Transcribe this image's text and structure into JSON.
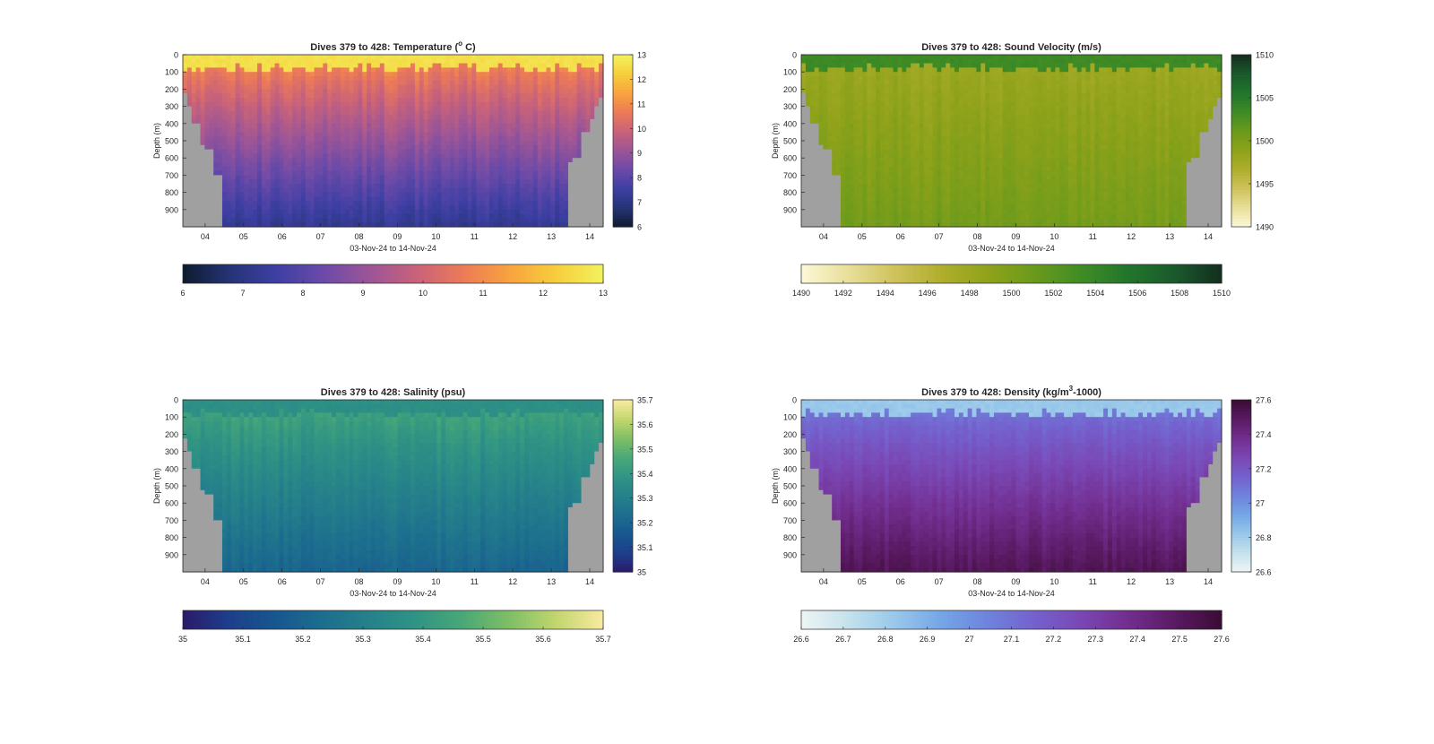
{
  "chart_data": [
    {
      "type": "heatmap",
      "title": "Dives 379 to 428: Temperature (° C)",
      "title_main": "Dives 379 to 428: Temperature (",
      "title_sup": "o",
      "title_tail": " C)",
      "ylabel": "Depth (m)",
      "xlabel": "03-Nov-24 to 14-Nov-24",
      "x_ticks": [
        "04",
        "05",
        "06",
        "07",
        "08",
        "09",
        "10",
        "11",
        "12",
        "13",
        "14"
      ],
      "y_ticks": [
        "0",
        "100",
        "200",
        "300",
        "400",
        "500",
        "600",
        "700",
        "800",
        "900"
      ],
      "ylim": [
        0,
        1000
      ],
      "clim": [
        6,
        13
      ],
      "side_colorbar_ticks": [
        "6",
        "7",
        "8",
        "9",
        "10",
        "11",
        "12",
        "13"
      ],
      "bottom_colorbar_ticks": [
        "6",
        "7",
        "8",
        "9",
        "10",
        "11",
        "12",
        "13"
      ],
      "colormap": [
        "#0d1b2e",
        "#253476",
        "#3d3fa3",
        "#6b4aa8",
        "#9c5597",
        "#c8627a",
        "#ec7a57",
        "#f8a33f",
        "#f6ce3c",
        "#f2f25d"
      ],
      "surface_value": 12.6,
      "thermocline_value": 10.8,
      "deep_value": 7.2,
      "nodata_color": "#a0a0a0"
    },
    {
      "type": "heatmap",
      "title": "Dives 379 to 428: Sound Velocity (m/s)",
      "title_main": "Dives 379 to 428: Sound Velocity (m/s)",
      "title_sup": "",
      "title_tail": "",
      "ylabel": "Depth (m)",
      "xlabel": "03-Nov-24 to 14-Nov-24",
      "x_ticks": [
        "04",
        "05",
        "06",
        "07",
        "08",
        "09",
        "10",
        "11",
        "12",
        "13",
        "14"
      ],
      "y_ticks": [
        "0",
        "100",
        "200",
        "300",
        "400",
        "500",
        "600",
        "700",
        "800",
        "900"
      ],
      "ylim": [
        0,
        1000
      ],
      "clim": [
        1490,
        1510
      ],
      "side_colorbar_ticks": [
        "1490",
        "1495",
        "1500",
        "1505",
        "1510"
      ],
      "bottom_colorbar_ticks": [
        "1490",
        "1492",
        "1494",
        "1496",
        "1498",
        "1500",
        "1502",
        "1504",
        "1506",
        "1508",
        "1510"
      ],
      "colormap": [
        "#fdf8d8",
        "#e8df9a",
        "#cfc25c",
        "#afae2c",
        "#8fa21a",
        "#6a9a1c",
        "#3f8c25",
        "#22752c",
        "#1a5a2c",
        "#132e1e"
      ],
      "surface_value": 1503.5,
      "thermocline_value": 1498.0,
      "deep_value": 1500.5,
      "nodata_color": "#a0a0a0"
    },
    {
      "type": "heatmap",
      "title": "Dives 379 to 428: Salinity (psu)",
      "title_main": "Dives 379 to 428: Salinity (psu)",
      "title_sup": "",
      "title_tail": "",
      "ylabel": "Depth (m)",
      "xlabel": "03-Nov-24 to 14-Nov-24",
      "x_ticks": [
        "04",
        "05",
        "06",
        "07",
        "08",
        "09",
        "10",
        "11",
        "12",
        "13",
        "14"
      ],
      "y_ticks": [
        "0",
        "100",
        "200",
        "300",
        "400",
        "500",
        "600",
        "700",
        "800",
        "900"
      ],
      "ylim": [
        0,
        1000
      ],
      "clim": [
        35,
        35.7
      ],
      "side_colorbar_ticks": [
        "35",
        "35.1",
        "35.2",
        "35.3",
        "35.4",
        "35.5",
        "35.6",
        "35.7"
      ],
      "bottom_colorbar_ticks": [
        "35",
        "35.1",
        "35.2",
        "35.3",
        "35.4",
        "35.5",
        "35.6",
        "35.7"
      ],
      "colormap": [
        "#2a1a6a",
        "#1d3f8c",
        "#17578f",
        "#1d6e8e",
        "#25818a",
        "#2f9484",
        "#4aa877",
        "#7fbf66",
        "#c2d66e",
        "#f9eaa0"
      ],
      "surface_value": 35.37,
      "thermocline_value": 35.44,
      "deep_value": 35.2,
      "nodata_color": "#a0a0a0"
    },
    {
      "type": "heatmap",
      "title": "Dives 379 to 428: Density (kg/m³-1000)",
      "title_main": "Dives 379 to 428: Density (kg/m",
      "title_sup": "3",
      "title_tail": "-1000)",
      "ylabel": "Depth (m)",
      "xlabel": "03-Nov-24 to 14-Nov-24",
      "x_ticks": [
        "04",
        "05",
        "06",
        "07",
        "08",
        "09",
        "10",
        "11",
        "12",
        "13",
        "14"
      ],
      "y_ticks": [
        "0",
        "100",
        "200",
        "300",
        "400",
        "500",
        "600",
        "700",
        "800",
        "900"
      ],
      "ylim": [
        0,
        1000
      ],
      "clim": [
        26.6,
        27.6
      ],
      "side_colorbar_ticks": [
        "26.6",
        "26.8",
        "27",
        "27.2",
        "27.4",
        "27.6"
      ],
      "bottom_colorbar_ticks": [
        "26.6",
        "26.7",
        "26.8",
        "26.9",
        "27",
        "27.1",
        "27.2",
        "27.3",
        "27.4",
        "27.5",
        "27.6"
      ],
      "colormap": [
        "#eef5f5",
        "#c5e2ec",
        "#99c8ea",
        "#74a6e6",
        "#6f83dc",
        "#7461cd",
        "#7a47b4",
        "#722e8f",
        "#5a1a63",
        "#3a0d34"
      ],
      "surface_value": 26.82,
      "thermocline_value": 27.1,
      "deep_value": 27.52,
      "nodata_color": "#a0a0a0"
    }
  ]
}
